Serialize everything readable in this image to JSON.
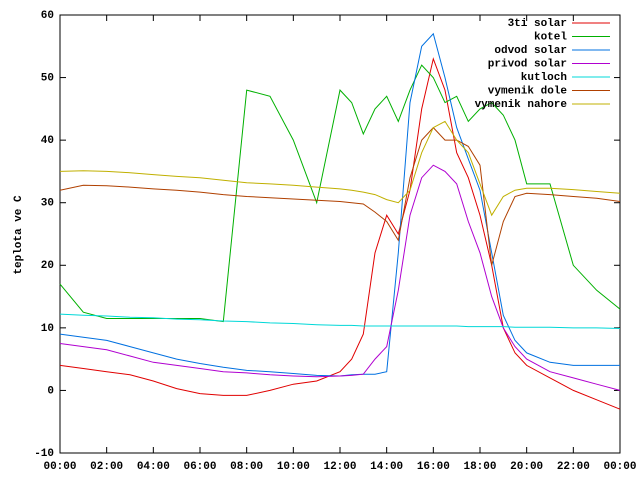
{
  "chart_data": {
    "type": "line",
    "y_label": "teplota ve C",
    "x": [
      "00:00",
      "01:00",
      "02:00",
      "03:00",
      "04:00",
      "05:00",
      "06:00",
      "07:00",
      "08:00",
      "09:00",
      "10:00",
      "11:00",
      "12:00",
      "12:30",
      "13:00",
      "13:30",
      "14:00",
      "14:30",
      "15:00",
      "15:30",
      "16:00",
      "16:30",
      "17:00",
      "17:30",
      "18:00",
      "18:30",
      "19:00",
      "19:30",
      "20:00",
      "21:00",
      "22:00",
      "23:00",
      "24:00"
    ],
    "series": [
      {
        "name": "3ti solar",
        "color": "#e00000",
        "values": [
          4,
          3.5,
          3,
          2.5,
          1.5,
          0.3,
          -0.5,
          -0.8,
          -0.8,
          0,
          1,
          1.5,
          3,
          5,
          9,
          22,
          28,
          25,
          32,
          45,
          53,
          48,
          38,
          34,
          28,
          20,
          10,
          6,
          4,
          2,
          0,
          -1.5,
          -3
        ]
      },
      {
        "name": "kotel",
        "color": "#00b000",
        "values": [
          17,
          12.5,
          11.5,
          11.5,
          11.5,
          11.5,
          11.5,
          11,
          48,
          47,
          40,
          30,
          48,
          46,
          41,
          45,
          47,
          43,
          48,
          52,
          50,
          46,
          47,
          43,
          45,
          46,
          44,
          40,
          33,
          33,
          20,
          16,
          13
        ]
      },
      {
        "name": "odvod solar",
        "color": "#0070e0",
        "values": [
          9,
          8.5,
          8,
          7,
          6,
          5,
          4.3,
          3.7,
          3.2,
          3,
          2.7,
          2.4,
          2.3,
          2.5,
          2.6,
          2.6,
          3,
          22,
          46,
          55,
          57,
          50,
          42,
          37,
          32,
          22,
          12,
          8,
          6,
          4.5,
          4,
          4,
          4
        ]
      },
      {
        "name": "privod solar",
        "color": "#b000d0",
        "values": [
          7.5,
          7,
          6.5,
          5.5,
          4.5,
          4,
          3.5,
          3,
          2.8,
          2.5,
          2.3,
          2.2,
          2.3,
          2.4,
          2.6,
          5,
          7,
          16,
          28,
          34,
          36,
          35,
          33,
          27,
          22,
          15,
          10,
          7,
          5,
          3,
          2,
          1,
          0
        ]
      },
      {
        "name": "kutloch",
        "color": "#00d8d8",
        "values": [
          12.2,
          12,
          11.9,
          11.7,
          11.6,
          11.4,
          11.3,
          11.1,
          11,
          10.8,
          10.7,
          10.5,
          10.4,
          10.4,
          10.3,
          10.3,
          10.3,
          10.3,
          10.3,
          10.3,
          10.3,
          10.3,
          10.3,
          10.2,
          10.2,
          10.2,
          10.2,
          10.1,
          10.1,
          10.1,
          10,
          10,
          9.9
        ]
      },
      {
        "name": "vymenik dole",
        "color": "#b04000",
        "values": [
          32,
          32.8,
          32.7,
          32.5,
          32.2,
          32,
          31.7,
          31.3,
          31,
          30.8,
          30.6,
          30.4,
          30.2,
          30,
          29.8,
          28.5,
          27,
          24,
          34,
          40,
          42,
          40,
          40,
          39,
          36,
          20,
          27,
          31,
          31.5,
          31.3,
          31,
          30.7,
          30.2
        ]
      },
      {
        "name": "vymenik nahore",
        "color": "#c0b000",
        "values": [
          35,
          35.1,
          35,
          34.8,
          34.5,
          34.2,
          34,
          33.6,
          33.2,
          33,
          32.8,
          32.5,
          32.2,
          32,
          31.7,
          31.3,
          30.5,
          30,
          32,
          38,
          42,
          43,
          40,
          38,
          33,
          28,
          31,
          32,
          32.3,
          32.3,
          32.1,
          31.8,
          31.5
        ]
      }
    ],
    "xlim": [
      0,
      24
    ],
    "xticks": [
      {
        "value": 0,
        "label": "00:00"
      },
      {
        "value": 2,
        "label": "02:00"
      },
      {
        "value": 4,
        "label": "04:00"
      },
      {
        "value": 6,
        "label": "06:00"
      },
      {
        "value": 8,
        "label": "08:00"
      },
      {
        "value": 10,
        "label": "10:00"
      },
      {
        "value": 12,
        "label": "12:00"
      },
      {
        "value": 14,
        "label": "14:00"
      },
      {
        "value": 16,
        "label": "16:00"
      },
      {
        "value": 18,
        "label": "18:00"
      },
      {
        "value": 20,
        "label": "20:00"
      },
      {
        "value": 22,
        "label": "22:00"
      },
      {
        "value": 24,
        "label": "00:00"
      }
    ],
    "ylim": [
      -10,
      60
    ],
    "yticks": [
      -10,
      0,
      10,
      20,
      30,
      40,
      50,
      60
    ],
    "legend": "top-right"
  }
}
